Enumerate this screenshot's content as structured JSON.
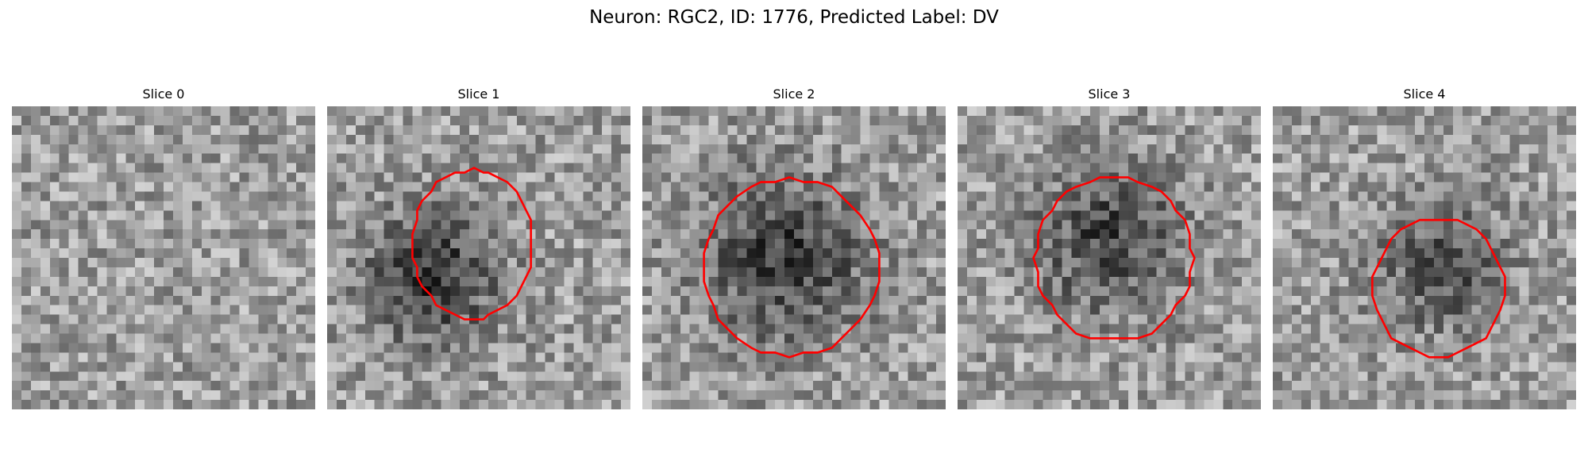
{
  "figure": {
    "title": "Neuron: RGC2, ID: 1776, Predicted Label: DV",
    "colormap": "gray",
    "contour_color": "#ff0000",
    "grid_cells_per_side": 32,
    "panels": [
      {
        "title": "Slice 0",
        "seed": 11,
        "blob": null,
        "contour": null
      },
      {
        "title": "Slice 1",
        "seed": 23,
        "blob": {
          "cx": 11,
          "cy": 18,
          "r": 7,
          "strength": 0.42
        },
        "contour": {
          "cx": 15.3,
          "cy": 14.6,
          "rx": 6.3,
          "ry": 7.9
        }
      },
      {
        "title": "Slice 2",
        "seed": 37,
        "blob": {
          "cx": 15,
          "cy": 16,
          "r": 9,
          "strength": 0.38
        },
        "contour": {
          "cx": 15.6,
          "cy": 17.0,
          "rx": 9.3,
          "ry": 9.3
        }
      },
      {
        "title": "Slice 3",
        "seed": 41,
        "blob": {
          "cx": 16,
          "cy": 14,
          "r": 8,
          "strength": 0.35
        },
        "contour": {
          "cx": 16.5,
          "cy": 16.1,
          "rx": 8.3,
          "ry": 8.6
        }
      },
      {
        "title": "Slice 4",
        "seed": 53,
        "blob": {
          "cx": 18,
          "cy": 17,
          "r": 7,
          "strength": 0.3
        },
        "contour": {
          "cx": 17.5,
          "cy": 19.1,
          "rx": 7.0,
          "ry": 7.3
        }
      }
    ]
  }
}
